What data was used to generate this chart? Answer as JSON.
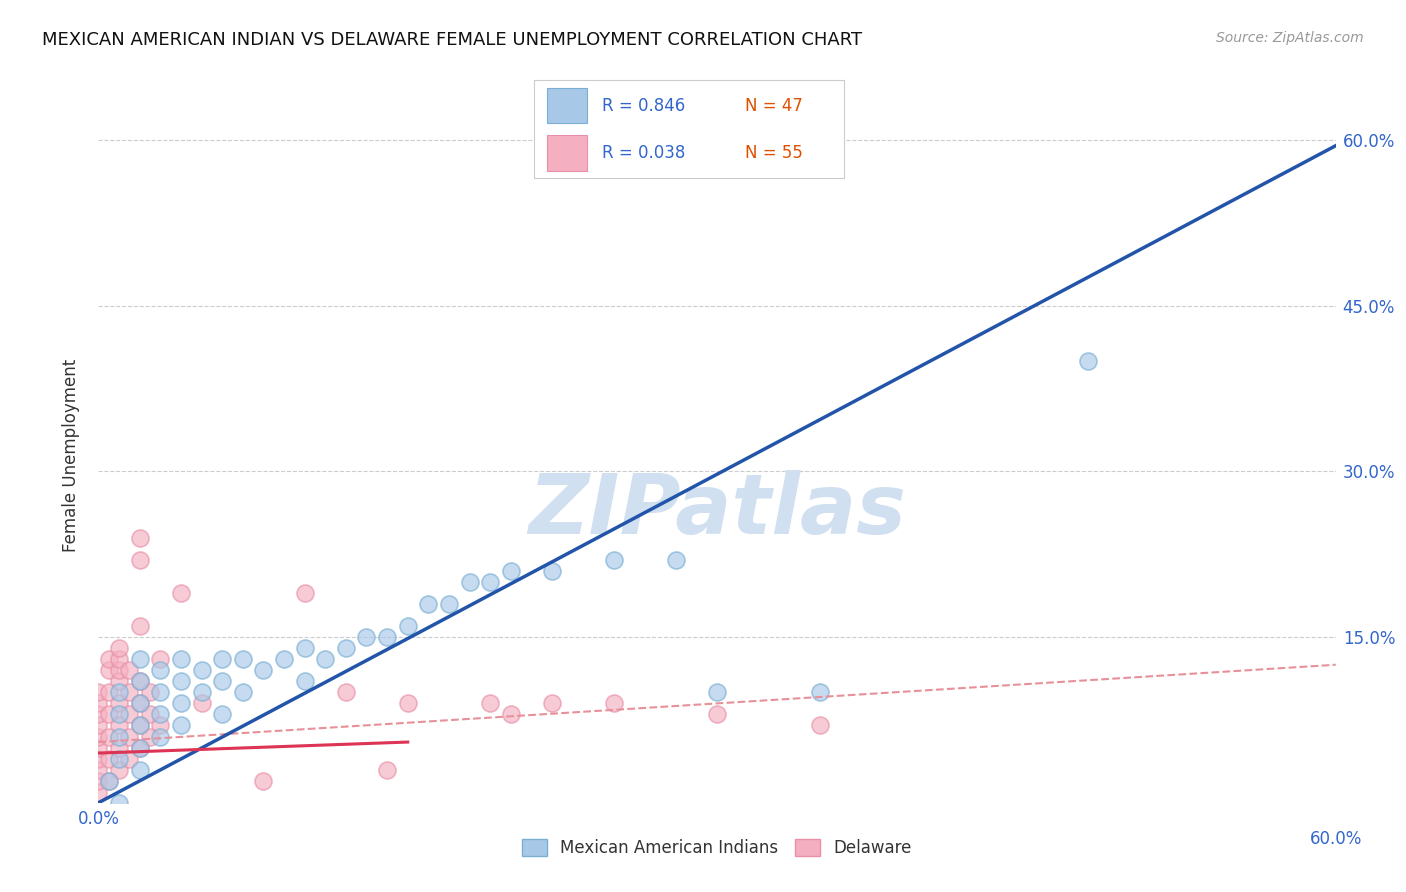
{
  "title": "MEXICAN AMERICAN INDIAN VS DELAWARE FEMALE UNEMPLOYMENT CORRELATION CHART",
  "source": "Source: ZipAtlas.com",
  "ylabel": "Female Unemployment",
  "legend_label_blue": "Mexican American Indians",
  "legend_label_pink": "Delaware",
  "blue_color": "#a8c8e8",
  "blue_edge_color": "#7aafd4",
  "pink_color": "#f4b0c0",
  "pink_edge_color": "#e890a8",
  "blue_line_color": "#2255aa",
  "pink_solid_color": "#dd3355",
  "pink_dashed_color": "#e8909a",
  "watermark_color": "#d0e0f0",
  "xlim": [
    0.0,
    0.6
  ],
  "ylim": [
    0.0,
    0.63
  ],
  "grid_ticks": [
    0.15,
    0.3,
    0.45,
    0.6
  ],
  "blue_trendline": [
    [
      0.0,
      0.0
    ],
    [
      0.6,
      0.595
    ]
  ],
  "pink_solid_line": [
    [
      0.0,
      0.045
    ],
    [
      0.15,
      0.055
    ]
  ],
  "pink_dashed_line": [
    [
      0.0,
      0.055
    ],
    [
      0.6,
      0.125
    ]
  ],
  "blue_dots": [
    [
      0.005,
      0.02
    ],
    [
      0.01,
      0.04
    ],
    [
      0.01,
      0.06
    ],
    [
      0.01,
      0.08
    ],
    [
      0.01,
      0.1
    ],
    [
      0.02,
      0.03
    ],
    [
      0.02,
      0.05
    ],
    [
      0.02,
      0.07
    ],
    [
      0.02,
      0.09
    ],
    [
      0.02,
      0.11
    ],
    [
      0.02,
      0.13
    ],
    [
      0.03,
      0.06
    ],
    [
      0.03,
      0.08
    ],
    [
      0.03,
      0.1
    ],
    [
      0.03,
      0.12
    ],
    [
      0.04,
      0.07
    ],
    [
      0.04,
      0.09
    ],
    [
      0.04,
      0.11
    ],
    [
      0.04,
      0.13
    ],
    [
      0.05,
      0.1
    ],
    [
      0.05,
      0.12
    ],
    [
      0.06,
      0.08
    ],
    [
      0.06,
      0.11
    ],
    [
      0.06,
      0.13
    ],
    [
      0.07,
      0.1
    ],
    [
      0.07,
      0.13
    ],
    [
      0.08,
      0.12
    ],
    [
      0.09,
      0.13
    ],
    [
      0.1,
      0.14
    ],
    [
      0.1,
      0.11
    ],
    [
      0.11,
      0.13
    ],
    [
      0.12,
      0.14
    ],
    [
      0.13,
      0.15
    ],
    [
      0.14,
      0.15
    ],
    [
      0.15,
      0.16
    ],
    [
      0.16,
      0.18
    ],
    [
      0.17,
      0.18
    ],
    [
      0.18,
      0.2
    ],
    [
      0.19,
      0.2
    ],
    [
      0.2,
      0.21
    ],
    [
      0.22,
      0.21
    ],
    [
      0.25,
      0.22
    ],
    [
      0.28,
      0.22
    ],
    [
      0.3,
      0.1
    ],
    [
      0.35,
      0.1
    ],
    [
      0.48,
      0.4
    ],
    [
      0.01,
      0.0
    ]
  ],
  "pink_dots": [
    [
      0.0,
      0.01
    ],
    [
      0.0,
      0.02
    ],
    [
      0.0,
      0.03
    ],
    [
      0.0,
      0.04
    ],
    [
      0.0,
      0.05
    ],
    [
      0.0,
      0.06
    ],
    [
      0.0,
      0.07
    ],
    [
      0.0,
      0.08
    ],
    [
      0.0,
      0.09
    ],
    [
      0.0,
      0.1
    ],
    [
      0.005,
      0.02
    ],
    [
      0.005,
      0.04
    ],
    [
      0.005,
      0.06
    ],
    [
      0.005,
      0.08
    ],
    [
      0.005,
      0.1
    ],
    [
      0.005,
      0.12
    ],
    [
      0.005,
      0.13
    ],
    [
      0.01,
      0.03
    ],
    [
      0.01,
      0.05
    ],
    [
      0.01,
      0.07
    ],
    [
      0.01,
      0.09
    ],
    [
      0.01,
      0.11
    ],
    [
      0.01,
      0.12
    ],
    [
      0.01,
      0.13
    ],
    [
      0.01,
      0.14
    ],
    [
      0.015,
      0.04
    ],
    [
      0.015,
      0.06
    ],
    [
      0.015,
      0.08
    ],
    [
      0.015,
      0.1
    ],
    [
      0.015,
      0.12
    ],
    [
      0.02,
      0.05
    ],
    [
      0.02,
      0.07
    ],
    [
      0.02,
      0.09
    ],
    [
      0.02,
      0.11
    ],
    [
      0.02,
      0.22
    ],
    [
      0.02,
      0.24
    ],
    [
      0.025,
      0.06
    ],
    [
      0.025,
      0.08
    ],
    [
      0.025,
      0.1
    ],
    [
      0.03,
      0.07
    ],
    [
      0.03,
      0.13
    ],
    [
      0.04,
      0.19
    ],
    [
      0.05,
      0.09
    ],
    [
      0.1,
      0.19
    ],
    [
      0.15,
      0.09
    ],
    [
      0.12,
      0.1
    ],
    [
      0.02,
      0.16
    ],
    [
      0.08,
      0.02
    ],
    [
      0.14,
      0.03
    ],
    [
      0.19,
      0.09
    ],
    [
      0.2,
      0.08
    ],
    [
      0.22,
      0.09
    ],
    [
      0.25,
      0.09
    ],
    [
      0.3,
      0.08
    ],
    [
      0.35,
      0.07
    ]
  ]
}
